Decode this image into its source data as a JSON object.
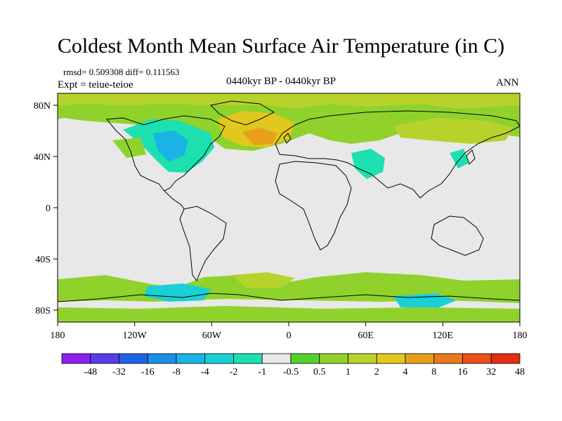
{
  "title": "Coldest Month Mean Surface Air Temperature (in C)",
  "stats": "rmsd= 0.509308 diff= 0.111563",
  "experiment": "Expt = teiue-teioe",
  "period": "0440kyr BP - 0440kyr BP",
  "season": "ANN",
  "axes": {
    "lat_labels": [
      "80N",
      "40N",
      "0",
      "40S",
      "80S"
    ],
    "lon_labels": [
      "180",
      "120W",
      "60W",
      "0",
      "60E",
      "120E",
      "180"
    ]
  },
  "colorbar": {
    "labels": [
      "-48",
      "-32",
      "-16",
      "-8",
      "-4",
      "-2",
      "-1",
      "-0.5",
      "0.5",
      "1",
      "2",
      "4",
      "8",
      "16",
      "32",
      "48"
    ],
    "colors": [
      "#8f1ff0",
      "#5a3ce6",
      "#1d63e6",
      "#1a8fe6",
      "#1ab3e6",
      "#19d0d6",
      "#1ce0b0",
      "#e8e8e8",
      "#55d12c",
      "#8fd22c",
      "#b8d22c",
      "#e0c81e",
      "#e8a01c",
      "#ec781c",
      "#ee5018",
      "#e62d12"
    ]
  }
}
